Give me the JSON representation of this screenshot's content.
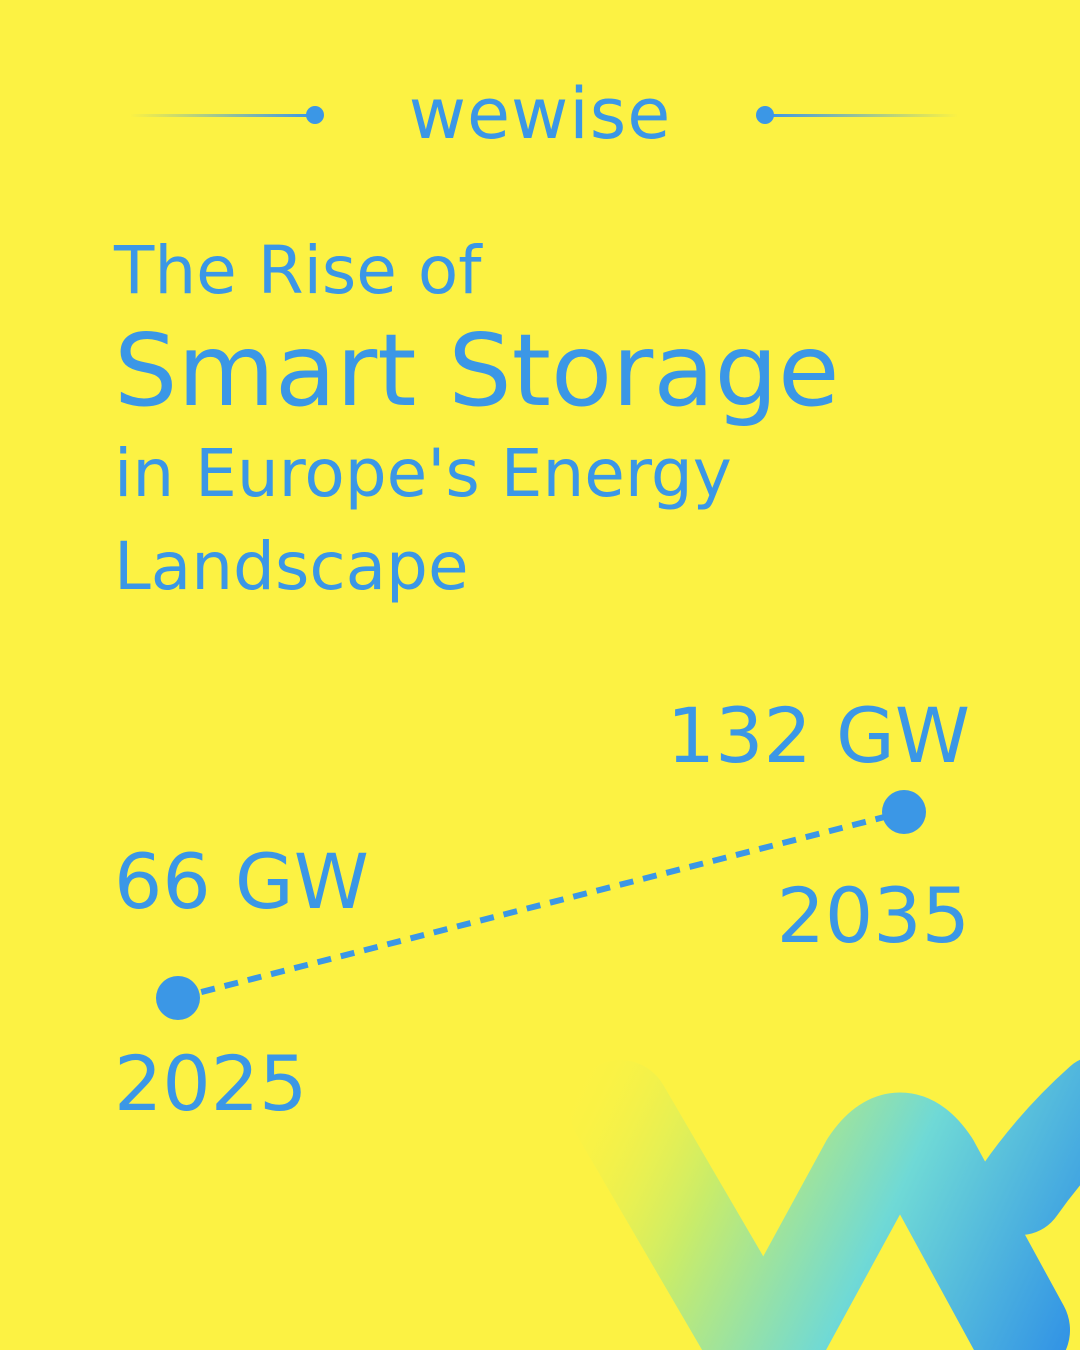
{
  "brand": {
    "name": "wewise"
  },
  "title": {
    "line1": "The Rise of",
    "line2": "Smart Storage",
    "line3": "in Europe's Energy",
    "line4": "Landscape"
  },
  "colors": {
    "background": "#FCF243",
    "accent": "#3B97E6"
  },
  "chart_data": {
    "type": "line",
    "x": [
      2025,
      2035
    ],
    "series": [
      {
        "values": [
          66,
          132
        ],
        "value_labels": [
          "66 GW",
          "132 GW"
        ]
      }
    ],
    "x_labels": [
      "2025",
      "2035"
    ],
    "line_style": "dashed",
    "grid": false,
    "legend": "none"
  }
}
